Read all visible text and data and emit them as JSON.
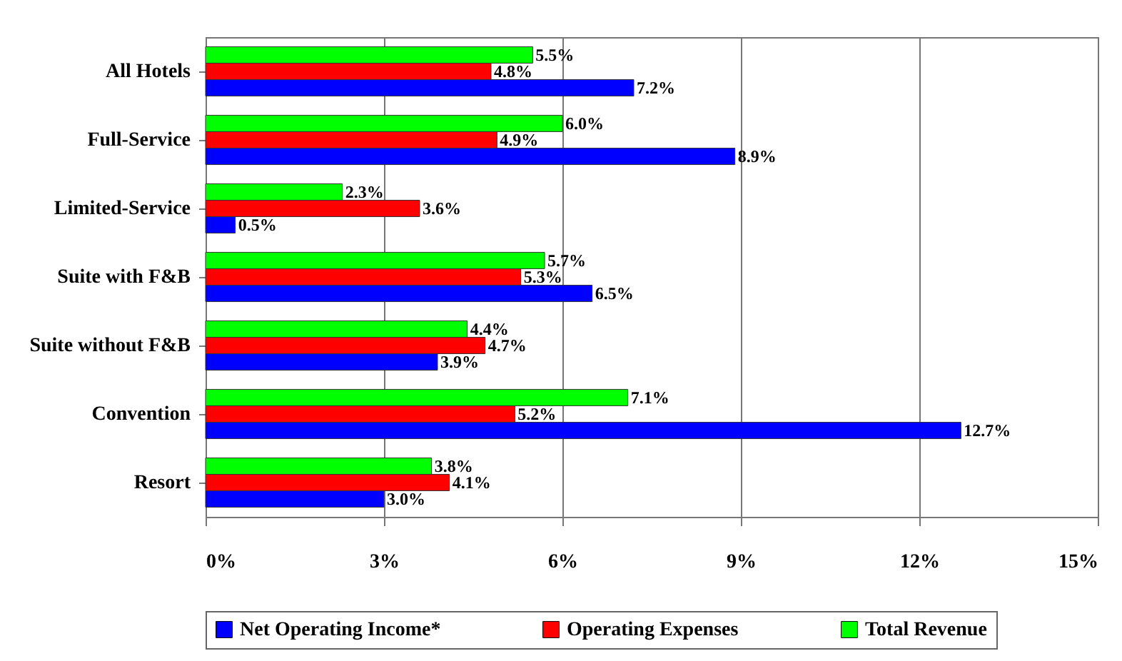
{
  "chart_data": {
    "type": "bar",
    "orientation": "horizontal",
    "categories": [
      "All Hotels",
      "Full-Service",
      "Limited-Service",
      "Suite with F&B",
      "Suite without F&B",
      "Convention",
      "Resort"
    ],
    "series": [
      {
        "name": "Net Operating Income*",
        "color": "#0000ff",
        "values": [
          7.2,
          8.9,
          0.5,
          6.5,
          3.9,
          12.7,
          3.0
        ],
        "value_labels": [
          "7.2%",
          "8.9%",
          "0.5%",
          "6.5%",
          "3.9%",
          "12.7%",
          "3.0%"
        ]
      },
      {
        "name": "Operating Expenses",
        "color": "#ff0000",
        "values": [
          4.8,
          4.9,
          3.6,
          5.3,
          4.7,
          5.2,
          4.1
        ],
        "value_labels": [
          "4.8%",
          "4.9%",
          "3.6%",
          "5.3%",
          "4.7%",
          "5.2%",
          "4.1%"
        ]
      },
      {
        "name": "Total Revenue",
        "color": "#00ff00",
        "values": [
          5.5,
          6.0,
          2.3,
          5.7,
          4.4,
          7.1,
          3.8
        ],
        "value_labels": [
          "5.5%",
          "6.0%",
          "2.3%",
          "5.7%",
          "4.4%",
          "7.1%",
          "3.8%"
        ]
      }
    ],
    "xlim": [
      0,
      15
    ],
    "xticks": [
      {
        "value": 0,
        "label": "0%"
      },
      {
        "value": 3,
        "label": "3%"
      },
      {
        "value": 6,
        "label": "6%"
      },
      {
        "value": 9,
        "label": "9%"
      },
      {
        "value": 12,
        "label": "12%"
      },
      {
        "value": 15,
        "label": "15%"
      }
    ],
    "grid": "x",
    "legend": "bottom"
  }
}
